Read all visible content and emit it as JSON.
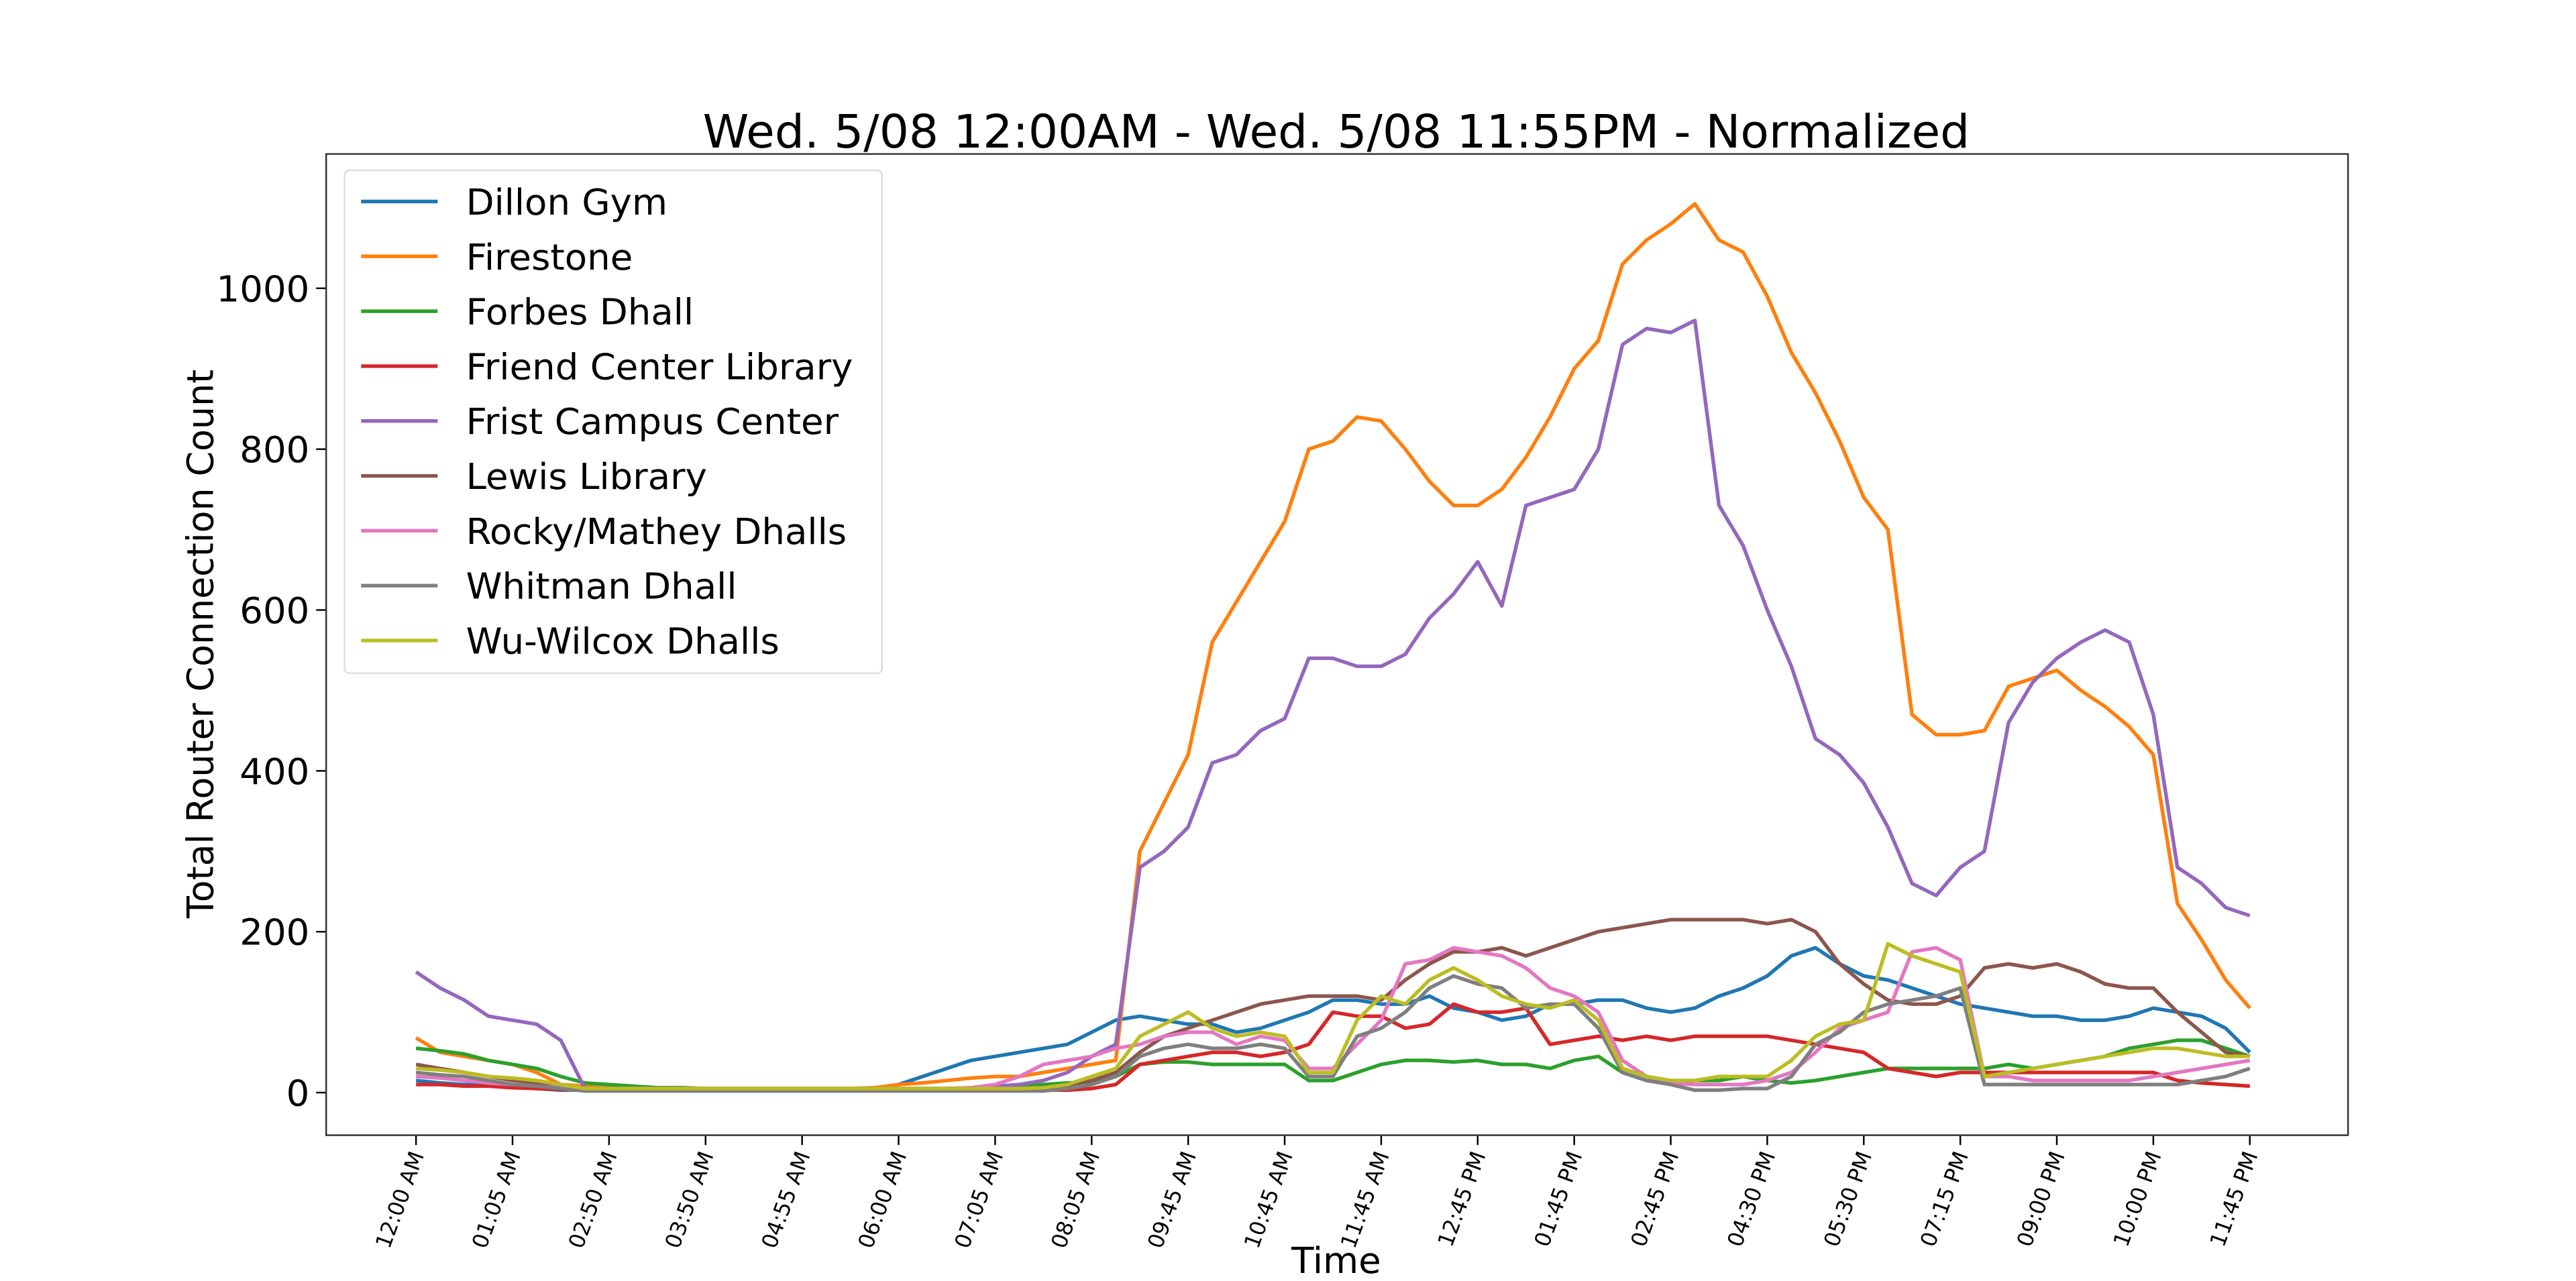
{
  "chart_data": {
    "type": "line",
    "title": "Wed. 5/08 12:00AM - Wed. 5/08 11:55PM - Normalized",
    "x_label": "Time",
    "y_label": "Total Router Connection Count",
    "categories": [
      "12:00 AM",
      null,
      null,
      null,
      "01:05 AM",
      null,
      null,
      null,
      "02:50 AM",
      null,
      null,
      null,
      "03:50 AM",
      null,
      null,
      null,
      "04:55 AM",
      null,
      null,
      null,
      "06:00 AM",
      null,
      null,
      null,
      "07:05 AM",
      null,
      null,
      null,
      "08:05 AM",
      null,
      null,
      null,
      "09:45 AM",
      null,
      null,
      null,
      "10:45 AM",
      null,
      null,
      null,
      "11:45 AM",
      null,
      null,
      null,
      "12:45 PM",
      null,
      null,
      null,
      "01:45 PM",
      null,
      null,
      null,
      "02:45 PM",
      null,
      null,
      null,
      "04:30 PM",
      null,
      null,
      null,
      "05:30 PM",
      null,
      null,
      null,
      "07:15 PM",
      null,
      null,
      null,
      "09:00 PM",
      null,
      null,
      null,
      "10:00 PM",
      null,
      null,
      null,
      "11:45 PM"
    ],
    "ylim": [
      -53,
      1167
    ],
    "yticks": [
      0,
      200,
      400,
      600,
      800,
      1000
    ],
    "legend": "upper left",
    "series": [
      {
        "name": "Dillon Gym",
        "color": "#1f77b4",
        "values": [
          15,
          12,
          10,
          10,
          8,
          5,
          3,
          3,
          3,
          3,
          3,
          3,
          3,
          3,
          3,
          3,
          3,
          3,
          3,
          4,
          10,
          20,
          30,
          40,
          45,
          50,
          55,
          60,
          75,
          90,
          95,
          90,
          85,
          85,
          75,
          80,
          90,
          100,
          115,
          115,
          110,
          110,
          120,
          105,
          100,
          90,
          95,
          110,
          110,
          115,
          115,
          105,
          100,
          105,
          120,
          130,
          145,
          170,
          180,
          160,
          145,
          140,
          130,
          120,
          110,
          105,
          100,
          95,
          95,
          90,
          90,
          95,
          105,
          100,
          95,
          80,
          50
        ]
      },
      {
        "name": "Firestone",
        "color": "#ff7f0e",
        "values": [
          68,
          50,
          45,
          40,
          35,
          25,
          10,
          8,
          7,
          6,
          6,
          6,
          5,
          5,
          5,
          5,
          5,
          5,
          5,
          6,
          10,
          12,
          15,
          18,
          20,
          20,
          25,
          30,
          35,
          40,
          300,
          360,
          420,
          560,
          610,
          660,
          710,
          800,
          810,
          840,
          835,
          800,
          760,
          730,
          730,
          750,
          790,
          840,
          900,
          935,
          1030,
          1060,
          1080,
          1105,
          1060,
          1045,
          990,
          920,
          870,
          810,
          740,
          700,
          470,
          445,
          445,
          450,
          505,
          515,
          525,
          500,
          480,
          455,
          420,
          235,
          190,
          140,
          105
        ]
      },
      {
        "name": "Forbes Dhall",
        "color": "#2ca02c",
        "values": [
          55,
          52,
          48,
          40,
          35,
          30,
          20,
          12,
          10,
          8,
          6,
          6,
          5,
          5,
          5,
          5,
          5,
          5,
          5,
          5,
          5,
          5,
          5,
          5,
          5,
          8,
          10,
          12,
          12,
          20,
          35,
          38,
          38,
          35,
          35,
          35,
          35,
          15,
          15,
          25,
          35,
          40,
          40,
          38,
          40,
          35,
          35,
          30,
          40,
          45,
          25,
          15,
          12,
          15,
          15,
          20,
          15,
          12,
          15,
          20,
          25,
          30,
          30,
          30,
          30,
          30,
          35,
          30,
          35,
          40,
          45,
          55,
          60,
          65,
          65,
          55,
          45
        ]
      },
      {
        "name": "Friend Center Library",
        "color": "#d62728",
        "values": [
          10,
          10,
          8,
          8,
          6,
          5,
          4,
          3,
          3,
          3,
          3,
          3,
          3,
          3,
          3,
          3,
          3,
          3,
          3,
          3,
          3,
          3,
          3,
          3,
          3,
          3,
          3,
          3,
          5,
          10,
          35,
          40,
          45,
          50,
          50,
          45,
          50,
          60,
          100,
          95,
          95,
          80,
          85,
          110,
          100,
          100,
          105,
          60,
          65,
          70,
          65,
          70,
          65,
          70,
          70,
          70,
          70,
          65,
          60,
          55,
          50,
          30,
          25,
          20,
          25,
          25,
          25,
          25,
          25,
          25,
          25,
          25,
          25,
          15,
          12,
          10,
          8
        ]
      },
      {
        "name": "Frist Campus Center",
        "color": "#9467bd",
        "values": [
          150,
          130,
          115,
          95,
          90,
          85,
          65,
          5,
          5,
          5,
          5,
          5,
          5,
          5,
          5,
          5,
          5,
          5,
          5,
          5,
          5,
          5,
          5,
          6,
          8,
          10,
          15,
          25,
          45,
          60,
          280,
          300,
          330,
          410,
          420,
          450,
          465,
          540,
          540,
          530,
          530,
          545,
          590,
          620,
          660,
          605,
          730,
          740,
          750,
          800,
          930,
          950,
          945,
          960,
          730,
          680,
          600,
          530,
          440,
          420,
          385,
          330,
          260,
          245,
          280,
          300,
          460,
          510,
          540,
          560,
          575,
          560,
          470,
          280,
          260,
          230,
          220
        ]
      },
      {
        "name": "Lewis Library",
        "color": "#8c564b",
        "values": [
          35,
          30,
          25,
          20,
          15,
          12,
          8,
          4,
          4,
          4,
          4,
          4,
          4,
          4,
          4,
          4,
          4,
          4,
          4,
          4,
          4,
          4,
          4,
          4,
          4,
          4,
          4,
          8,
          15,
          25,
          50,
          70,
          80,
          90,
          100,
          110,
          115,
          120,
          120,
          120,
          115,
          140,
          160,
          175,
          175,
          180,
          170,
          180,
          190,
          200,
          205,
          210,
          215,
          215,
          215,
          215,
          210,
          215,
          200,
          160,
          135,
          115,
          110,
          110,
          120,
          155,
          160,
          155,
          160,
          150,
          135,
          130,
          130,
          100,
          75,
          50,
          45
        ]
      },
      {
        "name": "Rocky/Mathey Dhalls",
        "color": "#e377c2",
        "values": [
          20,
          18,
          15,
          12,
          10,
          8,
          6,
          5,
          5,
          5,
          5,
          5,
          5,
          5,
          5,
          5,
          5,
          5,
          5,
          5,
          5,
          5,
          5,
          6,
          10,
          20,
          35,
          40,
          45,
          55,
          60,
          70,
          75,
          75,
          60,
          70,
          65,
          30,
          30,
          60,
          90,
          160,
          165,
          180,
          175,
          170,
          155,
          130,
          120,
          100,
          40,
          20,
          12,
          10,
          10,
          10,
          15,
          25,
          50,
          80,
          90,
          100,
          175,
          180,
          165,
          20,
          20,
          15,
          15,
          15,
          15,
          15,
          20,
          25,
          30,
          35,
          40
        ]
      },
      {
        "name": "Whitman Dhall",
        "color": "#7f7f7f",
        "values": [
          25,
          22,
          20,
          15,
          10,
          8,
          5,
          2,
          2,
          2,
          2,
          2,
          2,
          2,
          2,
          2,
          2,
          2,
          2,
          2,
          2,
          2,
          2,
          2,
          2,
          2,
          2,
          5,
          10,
          20,
          45,
          55,
          60,
          55,
          55,
          60,
          55,
          20,
          20,
          70,
          80,
          100,
          130,
          145,
          135,
          130,
          105,
          110,
          110,
          80,
          25,
          15,
          10,
          3,
          3,
          5,
          5,
          20,
          60,
          75,
          100,
          110,
          115,
          120,
          130,
          10,
          10,
          10,
          10,
          10,
          10,
          10,
          10,
          10,
          15,
          20,
          30
        ]
      },
      {
        "name": "Wu-Wilcox Dhalls",
        "color": "#bcbd22",
        "values": [
          30,
          28,
          25,
          20,
          18,
          15,
          10,
          5,
          5,
          5,
          5,
          5,
          5,
          5,
          5,
          5,
          5,
          5,
          5,
          5,
          5,
          5,
          5,
          5,
          5,
          5,
          6,
          10,
          20,
          30,
          70,
          85,
          100,
          80,
          70,
          75,
          70,
          25,
          25,
          90,
          120,
          110,
          140,
          155,
          140,
          120,
          110,
          105,
          115,
          90,
          30,
          20,
          15,
          15,
          20,
          20,
          20,
          40,
          70,
          85,
          90,
          185,
          170,
          160,
          150,
          20,
          25,
          30,
          35,
          40,
          45,
          50,
          55,
          55,
          50,
          45,
          45
        ]
      }
    ]
  }
}
